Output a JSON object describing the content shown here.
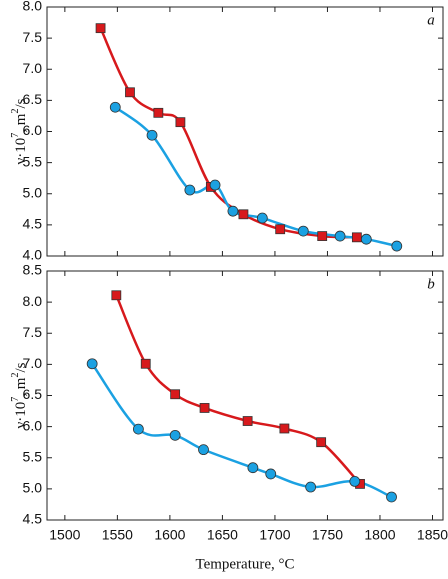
{
  "chart_data": [
    {
      "type": "line",
      "annotation": "a",
      "ylabel": [
        "ν·10",
        "7",
        ", m",
        "2",
        "/s"
      ],
      "xlim": [
        1483,
        1860
      ],
      "ylim": [
        4.0,
        8.0
      ],
      "yticks": [
        {
          "value": 4,
          "label": "4.0"
        },
        4.5,
        {
          "value": 5,
          "label": "5.0"
        },
        5.5,
        {
          "value": 6,
          "label": "6.0"
        },
        6.5,
        {
          "value": 7,
          "label": "7.0"
        },
        7.5,
        {
          "value": 8,
          "label": "8.0"
        }
      ],
      "series": [
        {
          "color": "#d7191c",
          "marker": "square",
          "x": [
            1534,
            1562,
            1589,
            1610,
            1639,
            1670,
            1705,
            1745,
            1778
          ],
          "values": [
            7.66,
            6.63,
            6.3,
            6.15,
            5.11,
            4.67,
            4.43,
            4.32,
            4.3
          ]
        },
        {
          "color": "#1ba1e2",
          "marker": "circle",
          "x": [
            1548,
            1583,
            1619,
            1643,
            1660,
            1688,
            1727,
            1762,
            1787,
            1816
          ],
          "values": [
            6.39,
            5.94,
            5.06,
            5.14,
            4.72,
            4.61,
            4.4,
            4.32,
            4.27,
            4.16
          ]
        }
      ]
    },
    {
      "type": "line",
      "annotation": "b",
      "ylabel": [
        "ν·10",
        "7",
        ", m",
        "2",
        "/s"
      ],
      "xlabel": "Temperature, °C",
      "xlim": [
        1483,
        1860
      ],
      "ylim": [
        4.5,
        8.5
      ],
      "xticks": [
        1500,
        1550,
        1600,
        1650,
        1700,
        1750,
        1800,
        1850
      ],
      "yticks": [
        4.5,
        {
          "value": 5,
          "label": "5.0"
        },
        5.5,
        {
          "value": 6,
          "label": "6.0"
        },
        6.5,
        {
          "value": 7,
          "label": "7.0"
        },
        7.5,
        {
          "value": 8,
          "label": "8.0"
        },
        8.5
      ],
      "series": [
        {
          "color": "#d7191c",
          "marker": "square",
          "x": [
            1549,
            1577,
            1605,
            1633,
            1674,
            1709,
            1744,
            1781
          ],
          "values": [
            8.11,
            7.01,
            6.52,
            6.3,
            6.09,
            5.97,
            5.75,
            5.08
          ]
        },
        {
          "color": "#1ba1e2",
          "marker": "circle",
          "x": [
            1526,
            1570,
            1605,
            1632,
            1679,
            1696,
            1734,
            1776,
            1811
          ],
          "values": [
            7.01,
            5.96,
            5.86,
            5.63,
            5.34,
            5.24,
            5.03,
            5.12,
            4.87
          ]
        }
      ]
    }
  ]
}
